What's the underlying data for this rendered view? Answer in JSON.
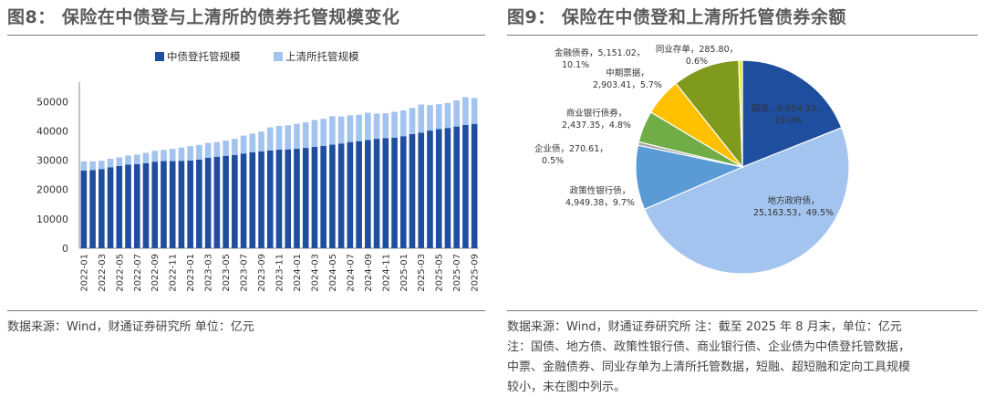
{
  "left_panel": {
    "title": "图8：  保险在中债登与上清所的债券托管规模变化",
    "source": "数据来源：Wind，财通证券研究所      单位：亿元"
  },
  "right_panel": {
    "title": "图9：  保险在中债登和上清所托管债券余额",
    "notes": [
      "数据来源：Wind，财通证券研究所    注：截至 2025 年 8 月末，单位：亿元",
      "注：国债、地方债、政策性银行债、商业银行债、企业债为中债登托管数据，",
      "中票、金融债券、同业存单为上清所托管数据，短融、超短融和定向工具规模",
      "较小，未在图中列示。"
    ]
  },
  "colors": {
    "dark_blue": "#1f4e9e",
    "light_blue": "#a3c4ef",
    "mid_blue": "#5b9bd5",
    "grey": "#a5a5a5",
    "green": "#70ad47",
    "yellow": "#ffc000",
    "olive": "#7f9a1d",
    "lime": "#e6ea2a"
  },
  "chart_data": [
    {
      "type": "bar",
      "stacked": true,
      "categories": [
        "2022-01",
        "2022-02",
        "2022-03",
        "2022-04",
        "2022-05",
        "2022-06",
        "2022-07",
        "2022-08",
        "2022-09",
        "2022-10",
        "2022-11",
        "2022-12",
        "2023-01",
        "2023-02",
        "2023-03",
        "2023-04",
        "2023-05",
        "2023-06",
        "2023-07",
        "2023-08",
        "2023-09",
        "2023-10",
        "2023-11",
        "2023-12",
        "2024-01",
        "2024-02",
        "2024-03",
        "2024-04",
        "2024-05",
        "2024-06",
        "2024-07",
        "2024-08",
        "2024-09",
        "2024-10",
        "2024-11",
        "2024-12",
        "2025-01",
        "2025-02",
        "2025-03",
        "2025-04",
        "2025-05",
        "2025-06",
        "2025-07",
        "2025-08",
        "2025-09"
      ],
      "tick_labels": [
        "2022-01",
        "2022-03",
        "2022-05",
        "2022-07",
        "2022-09",
        "2022-11",
        "2023-01",
        "2023-03",
        "2023-05",
        "2023-07",
        "2023-09",
        "2023-11",
        "2024-01",
        "2024-03",
        "2024-05",
        "2024-07",
        "2024-09",
        "2024-11",
        "2025-01",
        "2025-03",
        "2025-05",
        "2025-07",
        "2025-09"
      ],
      "series": [
        {
          "name": "中债登托管规模",
          "color": "#1f4e9e",
          "values": [
            26500,
            26600,
            27000,
            27600,
            28000,
            28500,
            28700,
            29000,
            29500,
            29700,
            29700,
            29800,
            29900,
            30200,
            30800,
            31200,
            31500,
            31800,
            32300,
            32700,
            33000,
            33300,
            33600,
            33700,
            33900,
            34200,
            34600,
            34900,
            35300,
            35700,
            36200,
            36500,
            36900,
            37300,
            37500,
            37700,
            38200,
            38900,
            39400,
            40100,
            40600,
            41000,
            41500,
            42000,
            42400
          ]
        },
        {
          "name": "上清所托管规模",
          "color": "#a3c4ef",
          "values": [
            3100,
            3000,
            2800,
            2900,
            3000,
            3100,
            3200,
            3500,
            3700,
            3800,
            4200,
            4500,
            4900,
            5000,
            5100,
            5000,
            5200,
            5500,
            6100,
            6400,
            6800,
            7900,
            8100,
            8200,
            8500,
            8700,
            9100,
            9200,
            9700,
            9200,
            9100,
            9000,
            9300,
            8600,
            8500,
            8800,
            8800,
            8900,
            9600,
            8700,
            8500,
            8500,
            8900,
            9500,
            8800
          ]
        }
      ],
      "yticks": [
        0,
        10000,
        20000,
        30000,
        40000,
        50000
      ],
      "ylim": [
        0,
        56000
      ],
      "legend_position": "top"
    },
    {
      "type": "pie",
      "slices": [
        {
          "label": "国债",
          "value": 9654.33,
          "pct": "19.0%",
          "color": "#1f4e9e",
          "text": [
            "国债，9,654.33，",
            "19.0%"
          ]
        },
        {
          "label": "地方政府债",
          "value": 25163.53,
          "pct": "49.5%",
          "color": "#a3c4ef",
          "text": [
            "地方政府债，",
            "25,163.53，49.5%"
          ]
        },
        {
          "label": "政策性银行债",
          "value": 4949.38,
          "pct": "9.7%",
          "color": "#5b9bd5",
          "text": [
            "政策性银行债，",
            "4,949.38，9.7%"
          ]
        },
        {
          "label": "企业债",
          "value": 270.61,
          "pct": "0.5%",
          "color": "#a5a5a5",
          "text": [
            "企业债，270.61，",
            "0.5%"
          ]
        },
        {
          "label": "商业银行债",
          "value": 2437.35,
          "pct": "4.8%",
          "color": "#70ad47",
          "text": [
            "商业银行债券，",
            "2,437.35，4.8%"
          ]
        },
        {
          "label": "中期票据",
          "value": 2903.41,
          "pct": "5.7%",
          "color": "#ffc000",
          "text": [
            "中期票据，",
            "2,903.41，5.7%"
          ]
        },
        {
          "label": "金融债券",
          "value": 5151.02,
          "pct": "10.1%",
          "color": "#7f9a1d",
          "text": [
            "金融债券，5,151.02，",
            "10.1%"
          ]
        },
        {
          "label": "同业存单",
          "value": 285.8,
          "pct": "0.6%",
          "color": "#e6ea2a",
          "text": [
            "同业存单，285.80，",
            "0.6%"
          ]
        }
      ]
    }
  ]
}
